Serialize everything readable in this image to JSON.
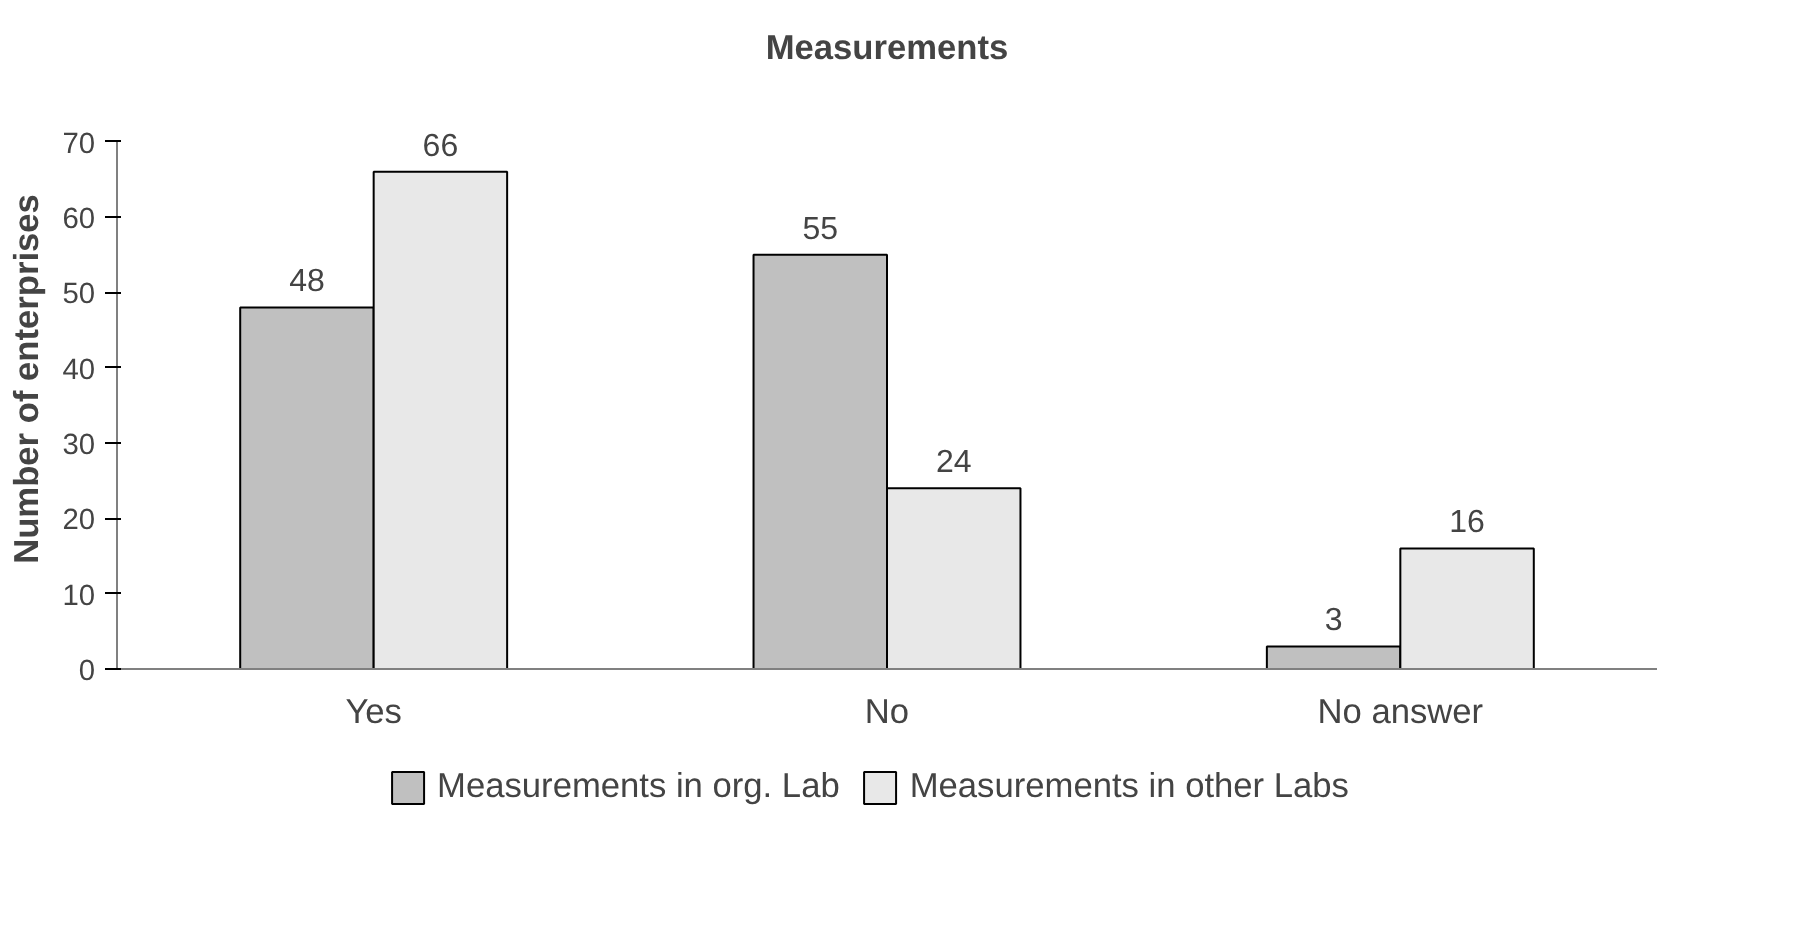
{
  "chart_data": {
    "type": "bar",
    "title": "Measurements",
    "ylabel": "Number of enterprises",
    "categories": [
      "Yes",
      "No",
      "No answer"
    ],
    "series": [
      {
        "name": "Measurements in org. Lab",
        "color": "#c0c0c0",
        "values": [
          48,
          55,
          3
        ]
      },
      {
        "name": "Measurements in other Labs",
        "color": "#e8e8e8",
        "values": [
          66,
          24,
          16
        ]
      }
    ],
    "ylim": [
      0,
      70
    ],
    "yticks": [
      0,
      10,
      20,
      30,
      40,
      50,
      60,
      70
    ],
    "grid": false,
    "legend": "bottom",
    "data_labels": true
  }
}
